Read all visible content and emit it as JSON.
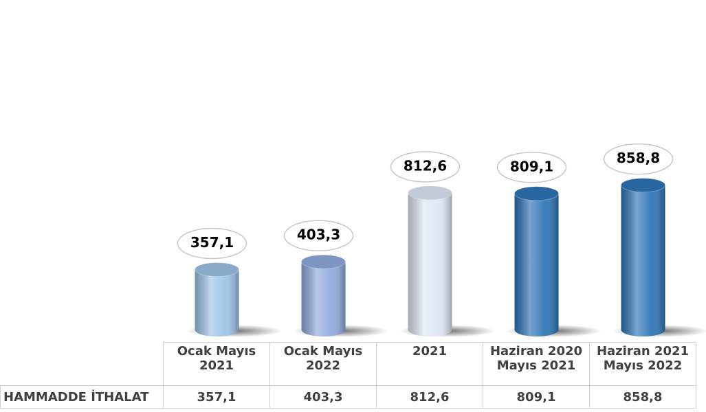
{
  "chart_data": {
    "type": "bar",
    "categories": [
      "Ocak Mayıs 2021",
      "Ocak Mayıs 2022",
      "2021",
      "Haziran 2020 Mayıs 2021",
      "Haziran 2021 Mayıs 2022"
    ],
    "series": [
      {
        "name": "HAMMADDE İTHALAT",
        "colors": [
          "#9dc3e6",
          "#8faadc",
          "#dde7f5",
          "#2e75b6",
          "#2e75b6"
        ],
        "values": [
          357.1,
          403.3,
          812.6,
          809.1,
          858.8
        ],
        "value_labels": [
          "357,1",
          "403,3",
          "812,6",
          "809,1",
          "858,8"
        ]
      }
    ]
  }
}
